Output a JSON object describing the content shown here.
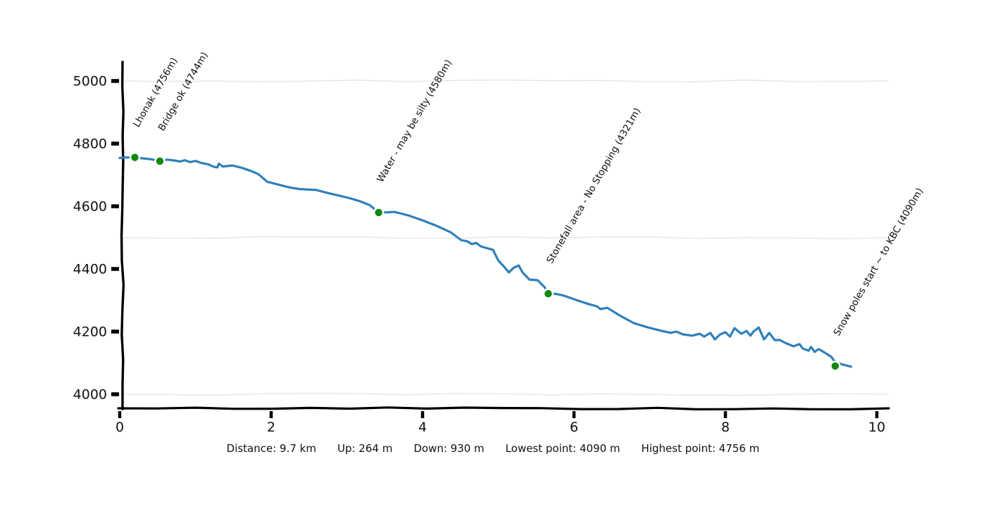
{
  "chart_data": {
    "type": "line",
    "style": "hand-drawn elevation profile",
    "xlabel": "",
    "ylabel": "",
    "x_unit": "km",
    "y_unit": "m",
    "xlim": [
      0,
      10.2
    ],
    "ylim": [
      3950,
      5060
    ],
    "x_ticks": [
      0,
      2,
      4,
      6,
      8,
      10
    ],
    "y_ticks": [
      4000,
      4200,
      4400,
      4600,
      4800,
      5000
    ],
    "gridlines_y": [
      4000,
      4500,
      5000
    ],
    "grid": "horizontal only",
    "legend": "none",
    "line_color": "#2f80ba",
    "marker_color": "#108910",
    "grid_color": "#e3e3e3",
    "axis_color": "#000000",
    "profile": [
      [
        0.0,
        4754
      ],
      [
        0.08,
        4756
      ],
      [
        0.2,
        4756
      ],
      [
        0.3,
        4753
      ],
      [
        0.42,
        4750
      ],
      [
        0.53,
        4744
      ],
      [
        0.63,
        4749
      ],
      [
        0.72,
        4746
      ],
      [
        0.8,
        4743
      ],
      [
        0.86,
        4747
      ],
      [
        0.93,
        4741
      ],
      [
        1.0,
        4745
      ],
      [
        1.08,
        4738
      ],
      [
        1.17,
        4734
      ],
      [
        1.24,
        4726
      ],
      [
        1.29,
        4724
      ],
      [
        1.31,
        4736
      ],
      [
        1.36,
        4727
      ],
      [
        1.49,
        4730
      ],
      [
        1.61,
        4723
      ],
      [
        1.72,
        4714
      ],
      [
        1.83,
        4703
      ],
      [
        1.95,
        4678
      ],
      [
        2.1,
        4669
      ],
      [
        2.23,
        4661
      ],
      [
        2.37,
        4655
      ],
      [
        2.6,
        4652
      ],
      [
        2.74,
        4643
      ],
      [
        2.88,
        4635
      ],
      [
        3.02,
        4627
      ],
      [
        3.16,
        4617
      ],
      [
        3.3,
        4604
      ],
      [
        3.42,
        4580
      ],
      [
        3.55,
        4581
      ],
      [
        3.63,
        4582
      ],
      [
        3.81,
        4571
      ],
      [
        4.0,
        4555
      ],
      [
        4.19,
        4537
      ],
      [
        4.37,
        4517
      ],
      [
        4.51,
        4492
      ],
      [
        4.59,
        4488
      ],
      [
        4.65,
        4479
      ],
      [
        4.71,
        4483
      ],
      [
        4.77,
        4472
      ],
      [
        4.93,
        4461
      ],
      [
        5.0,
        4427
      ],
      [
        5.07,
        4409
      ],
      [
        5.14,
        4389
      ],
      [
        5.21,
        4405
      ],
      [
        5.27,
        4411
      ],
      [
        5.32,
        4389
      ],
      [
        5.41,
        4366
      ],
      [
        5.52,
        4364
      ],
      [
        5.61,
        4342
      ],
      [
        5.66,
        4323
      ],
      [
        5.79,
        4319
      ],
      [
        5.86,
        4315
      ],
      [
        6.05,
        4299
      ],
      [
        6.19,
        4288
      ],
      [
        6.3,
        4281
      ],
      [
        6.35,
        4272
      ],
      [
        6.44,
        4276
      ],
      [
        6.6,
        4252
      ],
      [
        6.79,
        4227
      ],
      [
        6.98,
        4213
      ],
      [
        7.16,
        4202
      ],
      [
        7.28,
        4196
      ],
      [
        7.35,
        4200
      ],
      [
        7.44,
        4191
      ],
      [
        7.56,
        4187
      ],
      [
        7.66,
        4193
      ],
      [
        7.72,
        4184
      ],
      [
        7.8,
        4196
      ],
      [
        7.86,
        4175
      ],
      [
        7.93,
        4191
      ],
      [
        8.0,
        4198
      ],
      [
        8.06,
        4184
      ],
      [
        8.12,
        4211
      ],
      [
        8.21,
        4193
      ],
      [
        8.28,
        4202
      ],
      [
        8.33,
        4187
      ],
      [
        8.37,
        4200
      ],
      [
        8.44,
        4213
      ],
      [
        8.51,
        4175
      ],
      [
        8.58,
        4196
      ],
      [
        8.65,
        4173
      ],
      [
        8.72,
        4173
      ],
      [
        8.79,
        4164
      ],
      [
        8.9,
        4153
      ],
      [
        8.98,
        4160
      ],
      [
        9.02,
        4146
      ],
      [
        9.1,
        4139
      ],
      [
        9.13,
        4151
      ],
      [
        9.18,
        4135
      ],
      [
        9.23,
        4144
      ],
      [
        9.27,
        4139
      ],
      [
        9.33,
        4130
      ],
      [
        9.4,
        4119
      ],
      [
        9.43,
        4108
      ],
      [
        9.48,
        4101
      ],
      [
        9.56,
        4094
      ],
      [
        9.66,
        4088
      ]
    ],
    "waypoints": [
      {
        "label": "Lhonak (4756m)",
        "km": 0.2,
        "elevation": 4756
      },
      {
        "label": "Bridge ok (4744m)",
        "km": 0.53,
        "elevation": 4744
      },
      {
        "label": "Water - may be silty (4580m)",
        "km": 3.42,
        "elevation": 4580
      },
      {
        "label": "Stonefall area - No Stopping (4321m)",
        "km": 5.66,
        "elevation": 4321
      },
      {
        "label": "Snow poles start ~ to KBC (4090m)",
        "km": 9.45,
        "elevation": 4090
      }
    ]
  },
  "footer": {
    "items": [
      "Distance: 9.7 km",
      "Up: 264 m",
      "Down: 930 m",
      "Lowest point: 4090 m",
      "Highest point: 4756 m"
    ]
  }
}
